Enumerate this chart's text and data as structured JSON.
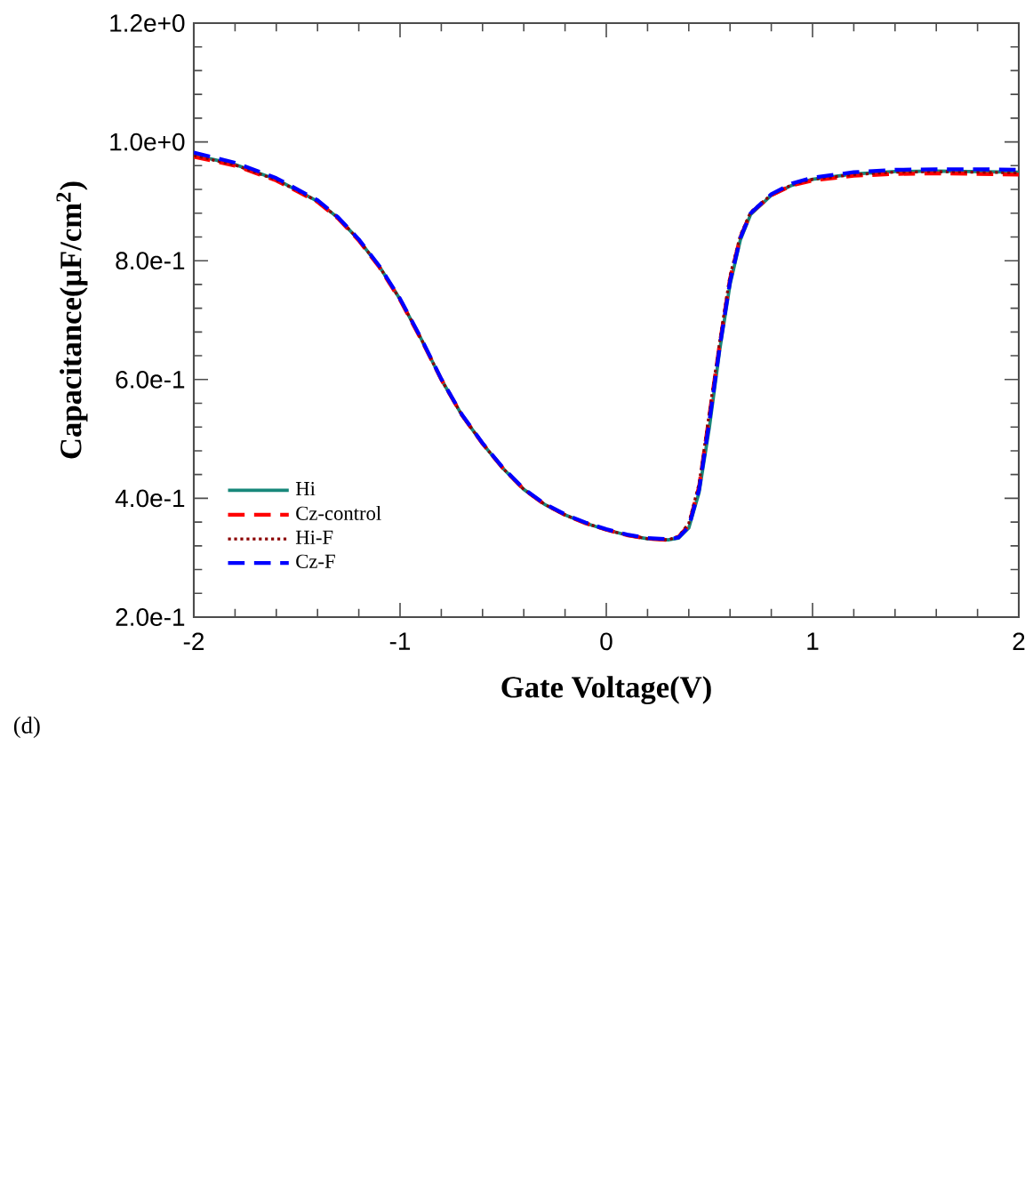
{
  "chart_data": {
    "type": "line",
    "xlabel": "Gate Voltage(V)",
    "ylabel": "Capacitance(μF/cm$^{2}$)",
    "annotations": [
      "(d)"
    ],
    "x": [
      -2,
      -1.8,
      -1.6,
      -1.4,
      -1.3,
      -1.2,
      -1.1,
      -1.0,
      -0.9,
      -0.8,
      -0.7,
      -0.6,
      -0.5,
      -0.4,
      -0.3,
      -0.2,
      -0.1,
      0,
      0.1,
      0.2,
      0.3,
      0.35,
      0.4,
      0.45,
      0.5,
      0.55,
      0.6,
      0.65,
      0.7,
      0.8,
      0.9,
      1.0,
      1.2,
      1.4,
      1.6,
      1.8,
      2.0
    ],
    "series": [
      {
        "name": "Hi",
        "color": "#17877a",
        "line_style": "solid",
        "values": [
          0.978,
          0.962,
          0.937,
          0.9,
          0.872,
          0.835,
          0.79,
          0.735,
          0.67,
          0.6,
          0.54,
          0.492,
          0.45,
          0.415,
          0.39,
          0.372,
          0.358,
          0.347,
          0.338,
          0.332,
          0.33,
          0.333,
          0.35,
          0.41,
          0.52,
          0.65,
          0.76,
          0.835,
          0.878,
          0.91,
          0.927,
          0.937,
          0.946,
          0.95,
          0.951,
          0.95,
          0.949
        ]
      },
      {
        "name": "Cz-control",
        "color": "#ff0000",
        "line_style": "dashed",
        "values": [
          0.975,
          0.96,
          0.935,
          0.899,
          0.871,
          0.834,
          0.789,
          0.734,
          0.669,
          0.6,
          0.54,
          0.492,
          0.45,
          0.415,
          0.39,
          0.372,
          0.358,
          0.347,
          0.338,
          0.332,
          0.33,
          0.335,
          0.355,
          0.42,
          0.54,
          0.66,
          0.77,
          0.84,
          0.88,
          0.91,
          0.927,
          0.935,
          0.943,
          0.946,
          0.947,
          0.946,
          0.945
        ]
      },
      {
        "name": "Hi-F",
        "color": "#8b0000",
        "line_style": "dotted",
        "values": [
          0.977,
          0.961,
          0.936,
          0.9,
          0.872,
          0.835,
          0.79,
          0.735,
          0.67,
          0.6,
          0.54,
          0.492,
          0.45,
          0.415,
          0.39,
          0.372,
          0.358,
          0.347,
          0.338,
          0.332,
          0.33,
          0.336,
          0.358,
          0.425,
          0.545,
          0.665,
          0.775,
          0.843,
          0.882,
          0.911,
          0.928,
          0.937,
          0.945,
          0.949,
          0.95,
          0.949,
          0.948
        ]
      },
      {
        "name": "Cz-F",
        "color": "#0000ff",
        "line_style": "dashed",
        "values": [
          0.982,
          0.965,
          0.939,
          0.902,
          0.873,
          0.836,
          0.791,
          0.736,
          0.671,
          0.601,
          0.541,
          0.493,
          0.451,
          0.416,
          0.391,
          0.373,
          0.359,
          0.348,
          0.339,
          0.333,
          0.331,
          0.334,
          0.352,
          0.415,
          0.53,
          0.655,
          0.765,
          0.838,
          0.88,
          0.912,
          0.93,
          0.94,
          0.949,
          0.953,
          0.954,
          0.954,
          0.953
        ]
      }
    ],
    "xlim": [
      -2,
      2
    ],
    "ylim": [
      0.2,
      1.2
    ],
    "xticks": [
      -2,
      -1,
      0,
      1,
      2
    ],
    "yticks": [
      {
        "value": 0.2,
        "label": "2.0e-1"
      },
      {
        "value": 0.4,
        "label": "4.0e-1"
      },
      {
        "value": 0.6,
        "label": "6.0e-1"
      },
      {
        "value": 0.8,
        "label": "8.0e-1"
      },
      {
        "value": 1.0,
        "label": "1.0e+0"
      },
      {
        "value": 1.2,
        "label": "1.2e+0"
      }
    ],
    "grid": false,
    "legend": "bottom left",
    "marker": "none"
  }
}
